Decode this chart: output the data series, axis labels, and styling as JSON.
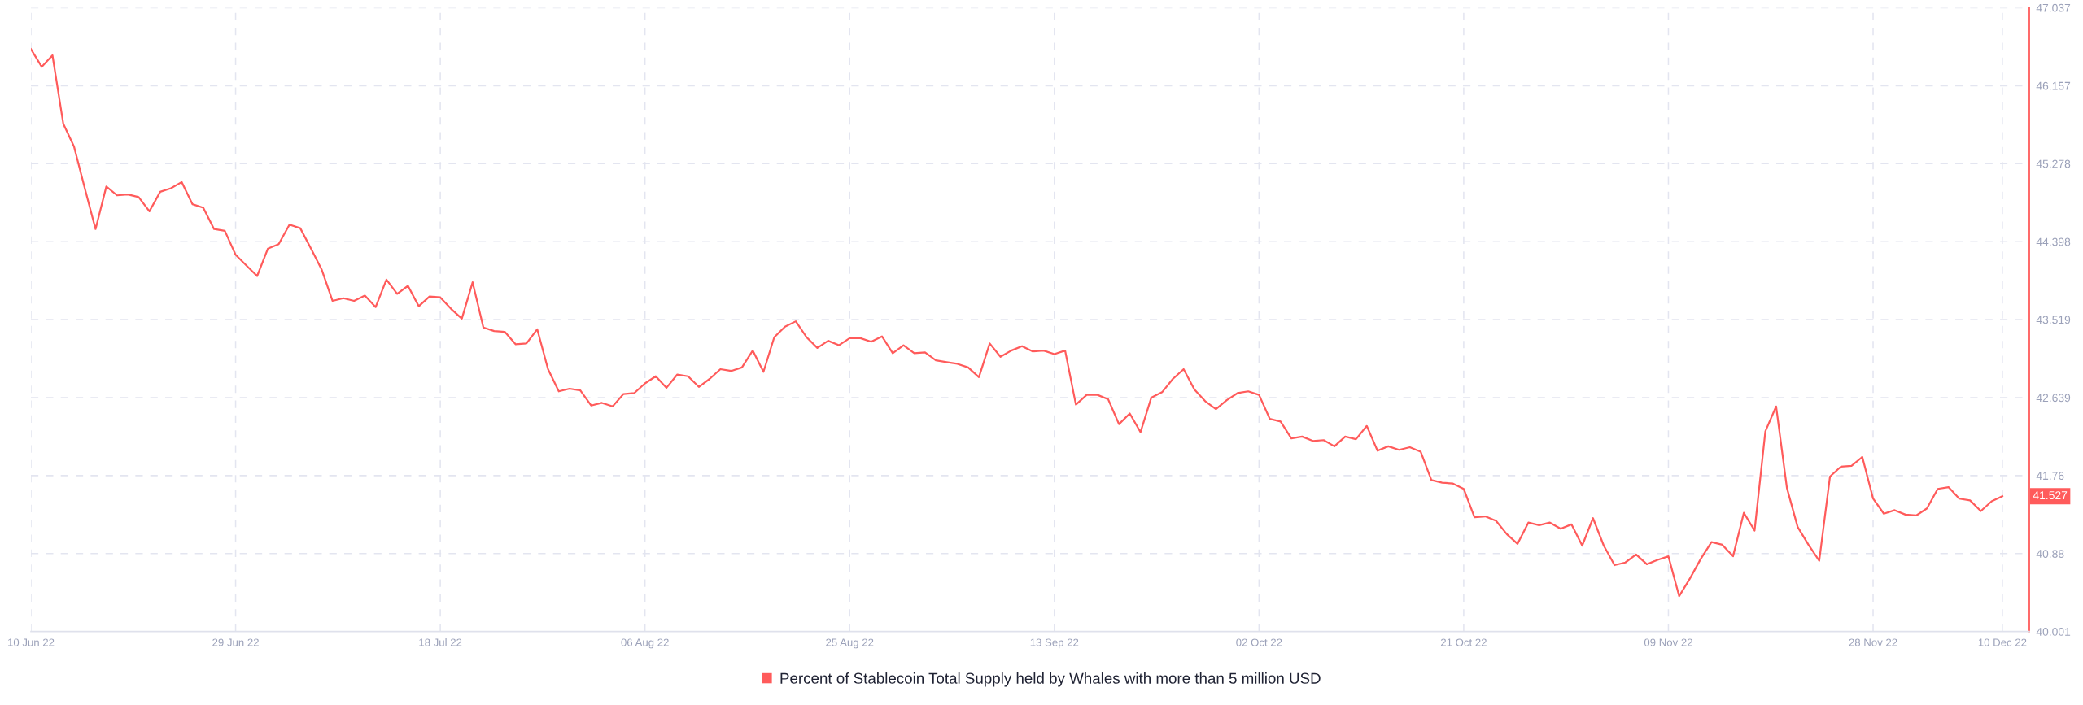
{
  "chart_data": {
    "type": "line",
    "x": [
      "2022-06-10",
      "2022-06-11",
      "2022-06-12",
      "2022-06-13",
      "2022-06-14",
      "2022-06-15",
      "2022-06-16",
      "2022-06-17",
      "2022-06-18",
      "2022-06-19",
      "2022-06-20",
      "2022-06-21",
      "2022-06-22",
      "2022-06-23",
      "2022-06-24",
      "2022-06-25",
      "2022-06-26",
      "2022-06-27",
      "2022-06-28",
      "2022-06-29",
      "2022-06-30",
      "2022-07-01",
      "2022-07-02",
      "2022-07-03",
      "2022-07-04",
      "2022-07-05",
      "2022-07-06",
      "2022-07-07",
      "2022-07-08",
      "2022-07-09",
      "2022-07-10",
      "2022-07-11",
      "2022-07-12",
      "2022-07-13",
      "2022-07-14",
      "2022-07-15",
      "2022-07-16",
      "2022-07-17",
      "2022-07-18",
      "2022-07-19",
      "2022-07-20",
      "2022-07-21",
      "2022-07-22",
      "2022-07-23",
      "2022-07-24",
      "2022-07-25",
      "2022-07-26",
      "2022-07-27",
      "2022-07-28",
      "2022-07-29",
      "2022-07-30",
      "2022-07-31",
      "2022-08-01",
      "2022-08-02",
      "2022-08-03",
      "2022-08-04",
      "2022-08-05",
      "2022-08-06",
      "2022-08-07",
      "2022-08-08",
      "2022-08-09",
      "2022-08-10",
      "2022-08-11",
      "2022-08-12",
      "2022-08-13",
      "2022-08-14",
      "2022-08-15",
      "2022-08-16",
      "2022-08-17",
      "2022-08-18",
      "2022-08-19",
      "2022-08-20",
      "2022-08-21",
      "2022-08-22",
      "2022-08-23",
      "2022-08-24",
      "2022-08-25",
      "2022-08-26",
      "2022-08-27",
      "2022-08-28",
      "2022-08-29",
      "2022-08-30",
      "2022-08-31",
      "2022-09-01",
      "2022-09-02",
      "2022-09-03",
      "2022-09-04",
      "2022-09-05",
      "2022-09-06",
      "2022-09-07",
      "2022-09-08",
      "2022-09-09",
      "2022-09-10",
      "2022-09-11",
      "2022-09-12",
      "2022-09-13",
      "2022-09-14",
      "2022-09-15",
      "2022-09-16",
      "2022-09-17",
      "2022-09-18",
      "2022-09-19",
      "2022-09-20",
      "2022-09-21",
      "2022-09-22",
      "2022-09-23",
      "2022-09-24",
      "2022-09-25",
      "2022-09-26",
      "2022-09-27",
      "2022-09-28",
      "2022-09-29",
      "2022-09-30",
      "2022-10-01",
      "2022-10-02",
      "2022-10-03",
      "2022-10-04",
      "2022-10-05",
      "2022-10-06",
      "2022-10-07",
      "2022-10-08",
      "2022-10-09",
      "2022-10-10",
      "2022-10-11",
      "2022-10-12",
      "2022-10-13",
      "2022-10-14",
      "2022-10-15",
      "2022-10-16",
      "2022-10-17",
      "2022-10-18",
      "2022-10-19",
      "2022-10-20",
      "2022-10-21",
      "2022-10-22",
      "2022-10-23",
      "2022-10-24",
      "2022-10-25",
      "2022-10-26",
      "2022-10-27",
      "2022-10-28",
      "2022-10-29",
      "2022-10-30",
      "2022-10-31",
      "2022-11-01",
      "2022-11-02",
      "2022-11-03",
      "2022-11-04",
      "2022-11-05",
      "2022-11-06",
      "2022-11-07",
      "2022-11-08",
      "2022-11-09",
      "2022-11-10",
      "2022-11-11",
      "2022-11-12",
      "2022-11-13",
      "2022-11-14",
      "2022-11-15",
      "2022-11-16",
      "2022-11-17",
      "2022-11-18",
      "2022-11-19",
      "2022-11-20",
      "2022-11-21",
      "2022-11-22",
      "2022-11-23",
      "2022-11-24",
      "2022-11-25",
      "2022-11-26",
      "2022-11-27",
      "2022-11-28",
      "2022-11-29",
      "2022-11-30",
      "2022-12-01",
      "2022-12-02",
      "2022-12-03",
      "2022-12-04",
      "2022-12-05",
      "2022-12-06",
      "2022-12-07",
      "2022-12-08",
      "2022-12-09",
      "2022-12-10"
    ],
    "series": [
      {
        "name": "Percent of Stablecoin Total Supply held by Whales with more than 5 million USD",
        "color": "#ff5b5b",
        "values": [
          46.57,
          46.37,
          46.5,
          45.73,
          45.47,
          45.0,
          44.54,
          45.02,
          44.92,
          44.93,
          44.9,
          44.74,
          44.96,
          45.0,
          45.07,
          44.82,
          44.78,
          44.54,
          44.52,
          44.25,
          44.13,
          44.01,
          44.32,
          44.37,
          44.59,
          44.55,
          44.32,
          44.08,
          43.73,
          43.76,
          43.73,
          43.79,
          43.66,
          43.97,
          43.81,
          43.9,
          43.67,
          43.78,
          43.77,
          43.64,
          43.53,
          43.94,
          43.43,
          43.39,
          43.38,
          43.24,
          43.25,
          43.41,
          42.96,
          42.71,
          42.74,
          42.72,
          42.55,
          42.58,
          42.54,
          42.68,
          42.69,
          42.8,
          42.88,
          42.75,
          42.9,
          42.88,
          42.76,
          42.85,
          42.96,
          42.94,
          42.98,
          43.17,
          42.93,
          43.32,
          43.44,
          43.5,
          43.32,
          43.2,
          43.28,
          43.23,
          43.31,
          43.31,
          43.27,
          43.33,
          43.14,
          43.23,
          43.14,
          43.15,
          43.06,
          43.04,
          43.02,
          42.98,
          42.87,
          43.25,
          43.1,
          43.17,
          43.22,
          43.16,
          43.17,
          43.13,
          43.17,
          42.56,
          42.67,
          42.67,
          42.62,
          42.34,
          42.46,
          42.25,
          42.64,
          42.7,
          42.85,
          42.96,
          42.73,
          42.6,
          42.51,
          42.61,
          42.69,
          42.71,
          42.67,
          42.4,
          42.37,
          42.18,
          42.2,
          42.15,
          42.16,
          42.09,
          42.2,
          42.17,
          42.32,
          42.04,
          42.09,
          42.05,
          42.08,
          42.03,
          41.71,
          41.68,
          41.67,
          41.61,
          41.29,
          41.3,
          41.25,
          41.1,
          40.99,
          41.23,
          41.2,
          41.23,
          41.16,
          41.21,
          40.97,
          41.28,
          40.97,
          40.75,
          40.78,
          40.87,
          40.76,
          40.81,
          40.85,
          40.4,
          40.6,
          40.82,
          41.01,
          40.98,
          40.85,
          41.34,
          41.14,
          42.26,
          42.54,
          41.62,
          41.18,
          40.98,
          40.8,
          41.75,
          41.86,
          41.87,
          41.97,
          41.5,
          41.33,
          41.37,
          41.32,
          41.31,
          41.39,
          41.61,
          41.63,
          41.5,
          41.48,
          41.36,
          41.47,
          41.527
        ]
      }
    ],
    "xlim": [
      "2022-06-10",
      "2022-12-12T12:00"
    ],
    "xticks": [
      {
        "value": "2022-06-10",
        "label": "10 Jun 22"
      },
      {
        "value": "2022-06-29",
        "label": "29 Jun 22"
      },
      {
        "value": "2022-07-18",
        "label": "18 Jul 22"
      },
      {
        "value": "2022-08-06",
        "label": "06 Aug 22"
      },
      {
        "value": "2022-08-25",
        "label": "25 Aug 22"
      },
      {
        "value": "2022-09-13",
        "label": "13 Sep 22"
      },
      {
        "value": "2022-10-02",
        "label": "02 Oct 22"
      },
      {
        "value": "2022-10-21",
        "label": "21 Oct 22"
      },
      {
        "value": "2022-11-09",
        "label": "09 Nov 22"
      },
      {
        "value": "2022-11-28",
        "label": "28 Nov 22"
      },
      {
        "value": "2022-12-10",
        "label": "10 Dec 22"
      }
    ],
    "ylim": [
      40.001,
      47.037
    ],
    "yticks": [
      40.001,
      40.88,
      41.76,
      42.639,
      43.519,
      44.398,
      45.278,
      46.157,
      47.037
    ],
    "grid": true,
    "legend": "bottom",
    "line_style": "solid",
    "annotations": [
      {
        "text": "41.527",
        "x": "2022-12-10",
        "y": 41.527
      }
    ]
  }
}
